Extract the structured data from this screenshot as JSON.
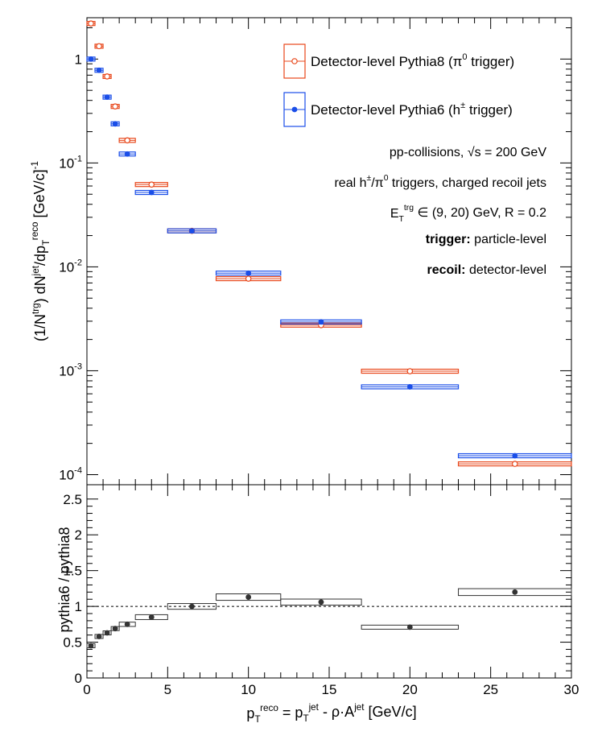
{
  "chart_data": {
    "type": "scatter",
    "x_axis": {
      "title": "p_T^reco = p_T^jet - ρ·A^jet [GeV/c]",
      "ticks": [
        "0",
        "5",
        "10",
        "15",
        "20",
        "25",
        "30"
      ],
      "range": [
        0,
        30
      ]
    },
    "top_panel": {
      "y_axis": {
        "title": "(1/N^trg) dN^jet/dp_T^reco [GeV/c]^-1",
        "scale": "log",
        "range": [
          8e-05,
          2.5
        ],
        "ticks": [
          "10^-4",
          "10^-3",
          "10^-2",
          "10^-1",
          "1"
        ]
      },
      "series": [
        {
          "name": "Detector-level Pythia8 (π^0 trigger)",
          "color": "#e8481c",
          "marker": "open-circle",
          "bins": [
            {
              "xlo": 0.0,
              "xhi": 0.5,
              "x": 0.25,
              "y": 2.2
            },
            {
              "xlo": 0.5,
              "xhi": 1.0,
              "x": 0.75,
              "y": 1.33
            },
            {
              "xlo": 1.0,
              "xhi": 1.5,
              "x": 1.25,
              "y": 0.68
            },
            {
              "xlo": 1.5,
              "xhi": 2.0,
              "x": 1.75,
              "y": 0.35
            },
            {
              "xlo": 2.0,
              "xhi": 3.0,
              "x": 2.5,
              "y": 0.165
            },
            {
              "xlo": 3.0,
              "xhi": 5.0,
              "x": 4.0,
              "y": 0.062
            },
            {
              "xlo": 5.0,
              "xhi": 8.0,
              "x": 6.5,
              "y": 0.0222
            },
            {
              "xlo": 8.0,
              "xhi": 12.0,
              "x": 10.0,
              "y": 0.0077
            },
            {
              "xlo": 12.0,
              "xhi": 17.0,
              "x": 14.5,
              "y": 0.00275
            },
            {
              "xlo": 17.0,
              "xhi": 23.0,
              "x": 20.0,
              "y": 0.00099
            },
            {
              "xlo": 23.0,
              "xhi": 30.0,
              "x": 26.5,
              "y": 0.000127
            }
          ]
        },
        {
          "name": "Detector-level Pythia6 (h^± trigger)",
          "color": "#1a4ee8",
          "marker": "filled-circle",
          "bins": [
            {
              "xlo": 0.0,
              "xhi": 0.5,
              "x": 0.25,
              "y": 1.0
            },
            {
              "xlo": 0.5,
              "xhi": 1.0,
              "x": 0.75,
              "y": 0.78
            },
            {
              "xlo": 1.0,
              "xhi": 1.5,
              "x": 1.25,
              "y": 0.43
            },
            {
              "xlo": 1.5,
              "xhi": 2.0,
              "x": 1.75,
              "y": 0.238
            },
            {
              "xlo": 2.0,
              "xhi": 3.0,
              "x": 2.5,
              "y": 0.122
            },
            {
              "xlo": 3.0,
              "xhi": 5.0,
              "x": 4.0,
              "y": 0.052
            },
            {
              "xlo": 5.0,
              "xhi": 8.0,
              "x": 6.5,
              "y": 0.0222
            },
            {
              "xlo": 8.0,
              "xhi": 12.0,
              "x": 10.0,
              "y": 0.0087
            },
            {
              "xlo": 12.0,
              "xhi": 17.0,
              "x": 14.5,
              "y": 0.00295
            },
            {
              "xlo": 17.0,
              "xhi": 23.0,
              "x": 20.0,
              "y": 0.0007
            },
            {
              "xlo": 23.0,
              "xhi": 30.0,
              "x": 26.5,
              "y": 0.000152
            }
          ]
        }
      ],
      "legend_position": "top-right",
      "annotations": [
        "pp-collisions, √s = 200 GeV",
        "real h^±/π^0 triggers, charged recoil jets",
        "E_T^trg ∈ (9, 20) GeV, R = 0.2",
        "trigger: particle-level",
        "recoil: detector-level"
      ]
    },
    "ratio_panel": {
      "y_axis": {
        "title": "pythia6 / pythia8",
        "range": [
          0,
          2.7
        ],
        "ticks": [
          "0",
          "0.5",
          "1",
          "1.5",
          "2",
          "2.5"
        ]
      },
      "reference_line": 1,
      "color": "#333333",
      "bins": [
        {
          "xlo": 0.0,
          "xhi": 0.5,
          "x": 0.25,
          "y": 0.45
        },
        {
          "xlo": 0.5,
          "xhi": 1.0,
          "x": 0.75,
          "y": 0.58
        },
        {
          "xlo": 1.0,
          "xhi": 1.5,
          "x": 1.25,
          "y": 0.63
        },
        {
          "xlo": 1.5,
          "xhi": 2.0,
          "x": 1.75,
          "y": 0.69
        },
        {
          "xlo": 2.0,
          "xhi": 3.0,
          "x": 2.5,
          "y": 0.75
        },
        {
          "xlo": 3.0,
          "xhi": 5.0,
          "x": 4.0,
          "y": 0.85
        },
        {
          "xlo": 5.0,
          "xhi": 8.0,
          "x": 6.5,
          "y": 1.0
        },
        {
          "xlo": 8.0,
          "xhi": 12.0,
          "x": 10.0,
          "y": 1.13
        },
        {
          "xlo": 12.0,
          "xhi": 17.0,
          "x": 14.5,
          "y": 1.06
        },
        {
          "xlo": 17.0,
          "xhi": 23.0,
          "x": 20.0,
          "y": 0.71
        },
        {
          "xlo": 23.0,
          "xhi": 30.0,
          "x": 26.5,
          "y": 1.2
        }
      ]
    }
  }
}
